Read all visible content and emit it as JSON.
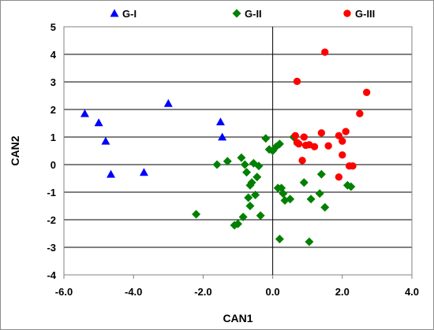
{
  "chart_data": {
    "type": "scatter",
    "title": "",
    "xlabel": "CAN1",
    "ylabel": "CAN2",
    "xlim": [
      -6,
      4
    ],
    "ylim": [
      -4,
      5
    ],
    "x_ticks": [
      "-6.0",
      "-4.0",
      "-2.0",
      "0.0",
      "2.0",
      "4.0"
    ],
    "y_ticks": [
      "-4",
      "-3",
      "-2",
      "-1",
      "0",
      "1",
      "2",
      "3",
      "4",
      "5"
    ],
    "grid": "horizontal",
    "legend_position": "top",
    "series": [
      {
        "name": "G-I",
        "marker": "triangle",
        "color": "#0000ff",
        "points": [
          [
            -5.4,
            1.85
          ],
          [
            -5.0,
            1.52
          ],
          [
            -4.8,
            0.85
          ],
          [
            -4.65,
            -0.35
          ],
          [
            -3.7,
            -0.28
          ],
          [
            -3.0,
            2.22
          ],
          [
            -1.5,
            1.55
          ],
          [
            -1.45,
            1.0
          ]
        ]
      },
      {
        "name": "G-II",
        "marker": "diamond",
        "color": "#008000",
        "points": [
          [
            -2.2,
            -1.8
          ],
          [
            -1.6,
            0.0
          ],
          [
            -1.3,
            0.12
          ],
          [
            -1.1,
            -2.2
          ],
          [
            -1.0,
            -2.15
          ],
          [
            -0.9,
            0.25
          ],
          [
            -0.85,
            -1.9
          ],
          [
            -0.8,
            0.0
          ],
          [
            -0.75,
            -0.28
          ],
          [
            -0.7,
            -1.2
          ],
          [
            -0.65,
            -0.75
          ],
          [
            -0.6,
            -0.65
          ],
          [
            -0.55,
            0.05
          ],
          [
            -0.5,
            -1.1
          ],
          [
            -0.45,
            -0.45
          ],
          [
            -0.4,
            -0.05
          ],
          [
            -0.35,
            -1.85
          ],
          [
            -0.2,
            0.95
          ],
          [
            -0.1,
            0.55
          ],
          [
            0.0,
            0.5
          ],
          [
            0.1,
            0.65
          ],
          [
            0.15,
            -0.85
          ],
          [
            0.2,
            0.75
          ],
          [
            0.25,
            -0.85
          ],
          [
            0.3,
            -1.05
          ],
          [
            0.35,
            -1.3
          ],
          [
            0.5,
            -1.25
          ],
          [
            0.6,
            1.0
          ],
          [
            0.9,
            -0.65
          ],
          [
            1.1,
            -1.25
          ],
          [
            1.4,
            -0.35
          ],
          [
            1.5,
            -1.55
          ],
          [
            1.35,
            -1.05
          ],
          [
            2.15,
            -0.75
          ],
          [
            2.25,
            -0.8
          ],
          [
            0.2,
            -2.7
          ],
          [
            1.05,
            -2.8
          ],
          [
            -0.65,
            -1.5
          ]
        ]
      },
      {
        "name": "G-III",
        "marker": "circle",
        "color": "#ff0000",
        "points": [
          [
            0.7,
            3.02
          ],
          [
            1.5,
            4.08
          ],
          [
            2.7,
            2.62
          ],
          [
            2.5,
            1.85
          ],
          [
            0.65,
            1.05
          ],
          [
            0.7,
            0.8
          ],
          [
            0.75,
            0.75
          ],
          [
            0.9,
            1.0
          ],
          [
            0.95,
            0.7
          ],
          [
            1.05,
            0.72
          ],
          [
            1.2,
            0.65
          ],
          [
            1.4,
            1.15
          ],
          [
            1.6,
            0.68
          ],
          [
            1.9,
            1.05
          ],
          [
            2.0,
            0.85
          ],
          [
            2.1,
            1.2
          ],
          [
            2.0,
            0.35
          ],
          [
            2.2,
            -0.05
          ],
          [
            2.3,
            -0.05
          ],
          [
            1.9,
            -0.45
          ],
          [
            0.85,
            0.15
          ]
        ]
      }
    ]
  }
}
